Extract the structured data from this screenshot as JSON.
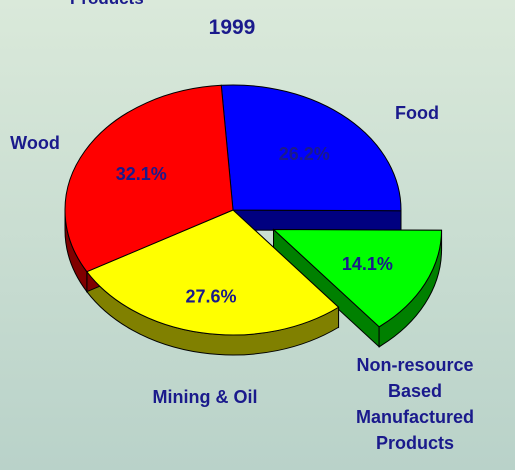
{
  "chart_data": {
    "type": "pie3d",
    "annotations": [
      "Products"
    ],
    "title": "1999",
    "categories": [
      "Food",
      "Non-resource Based Manufactured Products",
      "Mining & Oil",
      "Wood"
    ],
    "values": [
      26.2,
      14.1,
      27.6,
      32.1
    ],
    "value_labels": [
      "26.2%",
      "14.1%",
      "27.6%",
      "32.1%"
    ],
    "colors": [
      "#0000ff",
      "#00ff00",
      "#ffff00",
      "#ff0000"
    ],
    "explode": [
      false,
      true,
      false,
      false
    ]
  }
}
